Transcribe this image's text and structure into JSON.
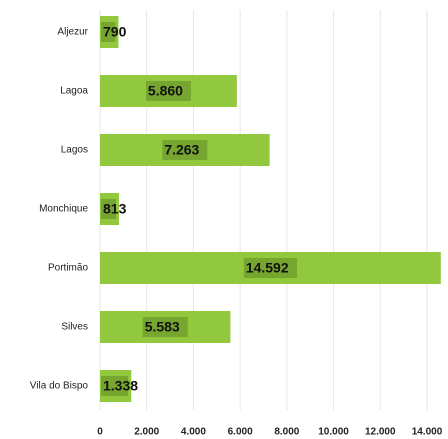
{
  "chart_data": {
    "type": "hbar",
    "categories": [
      "Aljezur",
      "Lagoa",
      "Lagos",
      "Monchique",
      "Portimão",
      "Silves",
      "Vila do Bispo"
    ],
    "values": [
      790,
      5860,
      7263,
      813,
      14592,
      5583,
      1338
    ],
    "value_labels": [
      "790",
      "5.860",
      "7.263",
      "813",
      "14.592",
      "5.583",
      "1.338"
    ],
    "color": "#92c83e",
    "xlim": [
      0,
      14600
    ],
    "xticks": [
      0,
      {
        "value": 2000,
        "label": "2.000"
      },
      {
        "value": 4000,
        "label": "4.000"
      },
      {
        "value": 6000,
        "label": "6.000"
      },
      {
        "value": 8000,
        "label": "8.000"
      },
      {
        "value": 10000,
        "label": "10.000"
      },
      {
        "value": 12000,
        "label": "12.000"
      },
      {
        "value": 14000,
        "label": "14.000"
      }
    ],
    "grid": true
  }
}
